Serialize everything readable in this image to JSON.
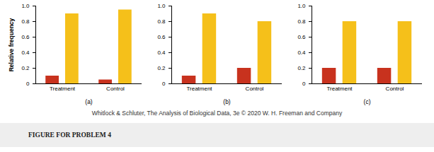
{
  "chart_data": [
    {
      "type": "bar",
      "ylabel": "Relative frequency",
      "xlabel": "(a)",
      "categories": [
        "Treatment",
        "Control"
      ],
      "series": [
        {
          "color": "#c8321e",
          "values": [
            0.1,
            0.05
          ]
        },
        {
          "color": "#f5c01a",
          "values": [
            0.9,
            0.95
          ]
        }
      ],
      "ylim": [
        0,
        1
      ],
      "yticks": [
        0,
        0.2,
        0.4,
        0.6,
        0.8,
        {
          "value": 1,
          "label": "1.0"
        }
      ],
      "grid": false
    },
    {
      "type": "bar",
      "xlabel": "(b)",
      "categories": [
        "Treatment",
        "Control"
      ],
      "series": [
        {
          "color": "#c8321e",
          "values": [
            0.1,
            0.2
          ]
        },
        {
          "color": "#f5c01a",
          "values": [
            0.9,
            0.8
          ]
        }
      ],
      "ylim": [
        0,
        1
      ],
      "yticks": [
        0,
        0.2,
        0.4,
        0.6,
        0.8,
        {
          "value": 1,
          "label": "1.0"
        }
      ],
      "grid": false
    },
    {
      "type": "bar",
      "xlabel": "(c)",
      "categories": [
        "Treatment",
        "Control"
      ],
      "series": [
        {
          "color": "#c8321e",
          "values": [
            0.2,
            0.2
          ]
        },
        {
          "color": "#f5c01a",
          "values": [
            0.8,
            0.8
          ]
        }
      ],
      "ylim": [
        0,
        1
      ],
      "yticks": [
        0,
        0.2,
        0.4,
        0.6,
        0.8,
        {
          "value": 1,
          "label": "1.0"
        }
      ],
      "grid": false
    }
  ],
  "source": "Whitlock & Schluter, The Analysis of Biological Data, 3e © 2020 W. H. Freeman and Company",
  "footer": "FIGURE FOR PROBLEM 4"
}
